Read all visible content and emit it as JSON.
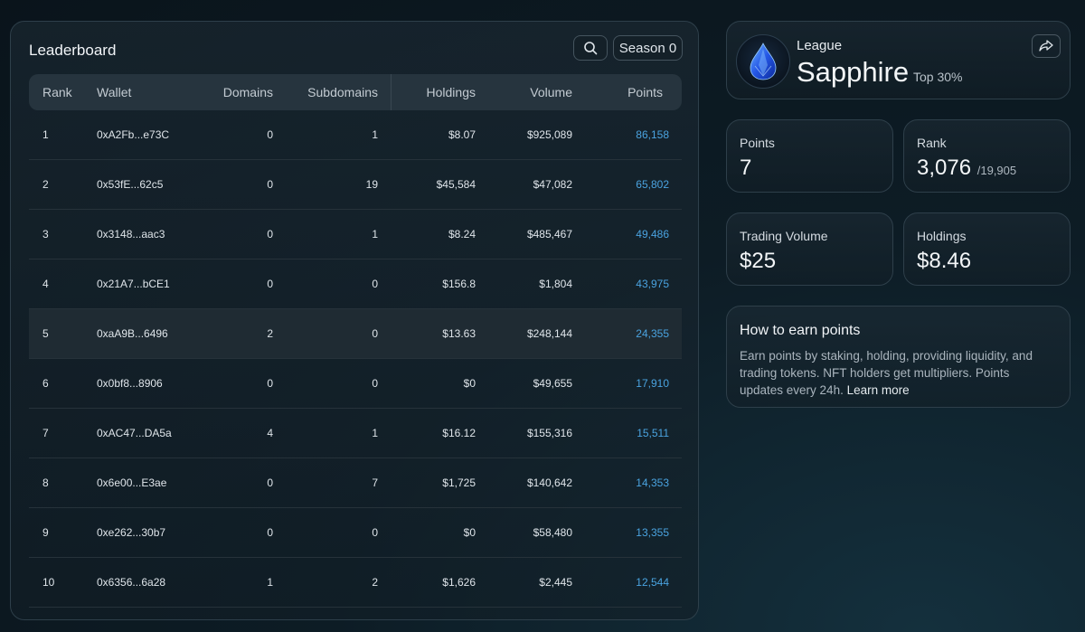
{
  "leaderboard": {
    "title": "Leaderboard",
    "season": "Season 0",
    "columns": {
      "rank": "Rank",
      "wallet": "Wallet",
      "domains": "Domains",
      "subdomains": "Subdomains",
      "holdings": "Holdings",
      "volume": "Volume",
      "points": "Points"
    },
    "rows": [
      {
        "rank": "1",
        "wallet": "0xA2Fb...e73C",
        "domains": "0",
        "subdomains": "1",
        "holdings": "$8.07",
        "volume": "$925,089",
        "points": "86,158"
      },
      {
        "rank": "2",
        "wallet": "0x53fE...62c5",
        "domains": "0",
        "subdomains": "19",
        "holdings": "$45,584",
        "volume": "$47,082",
        "points": "65,802"
      },
      {
        "rank": "3",
        "wallet": "0x3148...aac3",
        "domains": "0",
        "subdomains": "1",
        "holdings": "$8.24",
        "volume": "$485,467",
        "points": "49,486"
      },
      {
        "rank": "4",
        "wallet": "0x21A7...bCE1",
        "domains": "0",
        "subdomains": "0",
        "holdings": "$156.8",
        "volume": "$1,804",
        "points": "43,975"
      },
      {
        "rank": "5",
        "wallet": "0xaA9B...6496",
        "domains": "2",
        "subdomains": "0",
        "holdings": "$13.63",
        "volume": "$248,144",
        "points": "24,355"
      },
      {
        "rank": "6",
        "wallet": "0x0bf8...8906",
        "domains": "0",
        "subdomains": "0",
        "holdings": "$0",
        "volume": "$49,655",
        "points": "17,910"
      },
      {
        "rank": "7",
        "wallet": "0xAC47...DA5a",
        "domains": "4",
        "subdomains": "1",
        "holdings": "$16.12",
        "volume": "$155,316",
        "points": "15,511"
      },
      {
        "rank": "8",
        "wallet": "0x6e00...E3ae",
        "domains": "0",
        "subdomains": "7",
        "holdings": "$1,725",
        "volume": "$140,642",
        "points": "14,353"
      },
      {
        "rank": "9",
        "wallet": "0xe262...30b7",
        "domains": "0",
        "subdomains": "0",
        "holdings": "$0",
        "volume": "$58,480",
        "points": "13,355"
      },
      {
        "rank": "10",
        "wallet": "0x6356...6a28",
        "domains": "1",
        "subdomains": "2",
        "holdings": "$1,626",
        "volume": "$2,445",
        "points": "12,544"
      }
    ]
  },
  "league": {
    "label": "League",
    "name": "Sapphire",
    "top": "Top 30%"
  },
  "stats": {
    "points": {
      "label": "Points",
      "value": "7"
    },
    "rank": {
      "label": "Rank",
      "value": "3,076",
      "total": "/19,905"
    },
    "volume": {
      "label": "Trading Volume",
      "value": "$25"
    },
    "holdings": {
      "label": "Holdings",
      "value": "$8.46"
    }
  },
  "earn": {
    "title": "How to earn points",
    "text": "Earn points by staking, holding, providing liquidity, and trading tokens. NFT holders get multipliers. Points updates every 24h.",
    "link": "Learn more"
  },
  "colors": {
    "points_accent": "#4aa3e0",
    "background": "#0d1c25",
    "highlight_row": "#1f2b33"
  }
}
